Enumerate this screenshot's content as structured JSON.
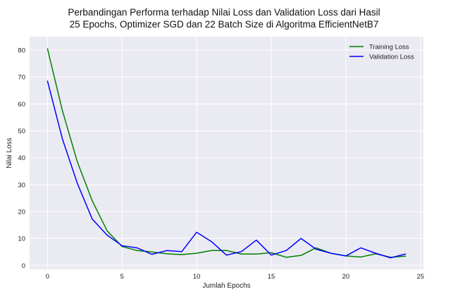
{
  "chart_data": {
    "type": "line",
    "title_line1": "Perbandingan Performa terhadap Nilai Loss dan Validation Loss dari Hasil",
    "title_line2": "25 Epochs, Optimizer SGD dan 22 Batch Size di Algoritma EfficientNetB7",
    "xlabel": "Jumlah Epochs",
    "ylabel": "Nilai Loss",
    "xlim": [
      -1.2,
      25.2
    ],
    "ylim": [
      -1.5,
      85
    ],
    "xticks": [
      "0",
      "5",
      "10",
      "15",
      "20",
      "25"
    ],
    "yticks": [
      "0",
      "10",
      "20",
      "30",
      "40",
      "50",
      "60",
      "70",
      "80"
    ],
    "grid": true,
    "legend_position": "top-right",
    "x": [
      0,
      1,
      2,
      3,
      4,
      5,
      6,
      7,
      8,
      9,
      10,
      11,
      12,
      13,
      14,
      15,
      16,
      17,
      18,
      19,
      20,
      21,
      22,
      23,
      24
    ],
    "series": [
      {
        "name": "Training Loss",
        "color": "#008000",
        "values": [
          80.5,
          57.5,
          38.5,
          24.0,
          12.8,
          7.0,
          5.5,
          5.0,
          4.3,
          4.0,
          4.5,
          5.5,
          5.5,
          4.2,
          4.2,
          4.7,
          3.0,
          3.7,
          6.5,
          4.5,
          3.5,
          3.1,
          4.3,
          3.0,
          3.4
        ]
      },
      {
        "name": "Validation Loss",
        "color": "#0000ff",
        "values": [
          68.5,
          47.0,
          30.5,
          17.2,
          11.2,
          7.3,
          6.5,
          4.1,
          5.5,
          5.1,
          12.3,
          8.8,
          3.8,
          5.1,
          9.4,
          3.8,
          5.5,
          10.0,
          6.0,
          4.5,
          3.5,
          6.5,
          4.5,
          2.8,
          4.2
        ]
      }
    ]
  },
  "colors": {
    "plot_background": "#eaeaf2",
    "grid": "#ffffff"
  }
}
